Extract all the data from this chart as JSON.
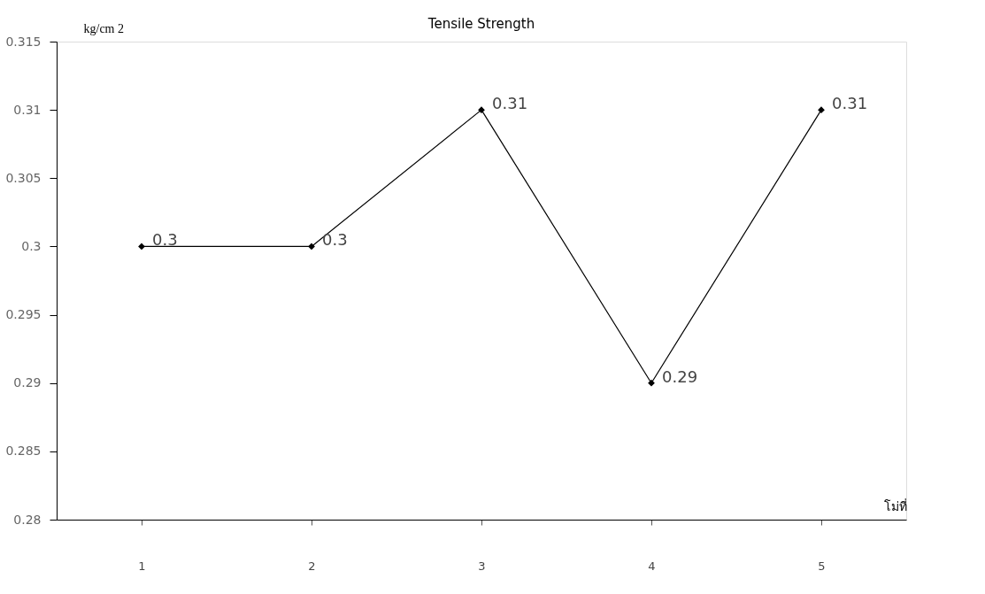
{
  "chart_data": {
    "type": "line",
    "title": "Tensile Strength",
    "ylabel": "kg/cm 2",
    "xlabel": "โม่ที่",
    "categories": [
      "1",
      "2",
      "3",
      "4",
      "5"
    ],
    "series": [
      {
        "color": "#000000",
        "values": [
          0.3,
          0.3,
          0.31,
          0.29,
          0.31
        ]
      }
    ],
    "ylim": [
      0.28,
      0.315
    ],
    "yticks": [
      0.28,
      0.285,
      0.29,
      0.295,
      0.3,
      0.305,
      0.31,
      0.315
    ],
    "grid": false,
    "marker": "diamond",
    "line_style": "solid",
    "data_labels": true
  }
}
